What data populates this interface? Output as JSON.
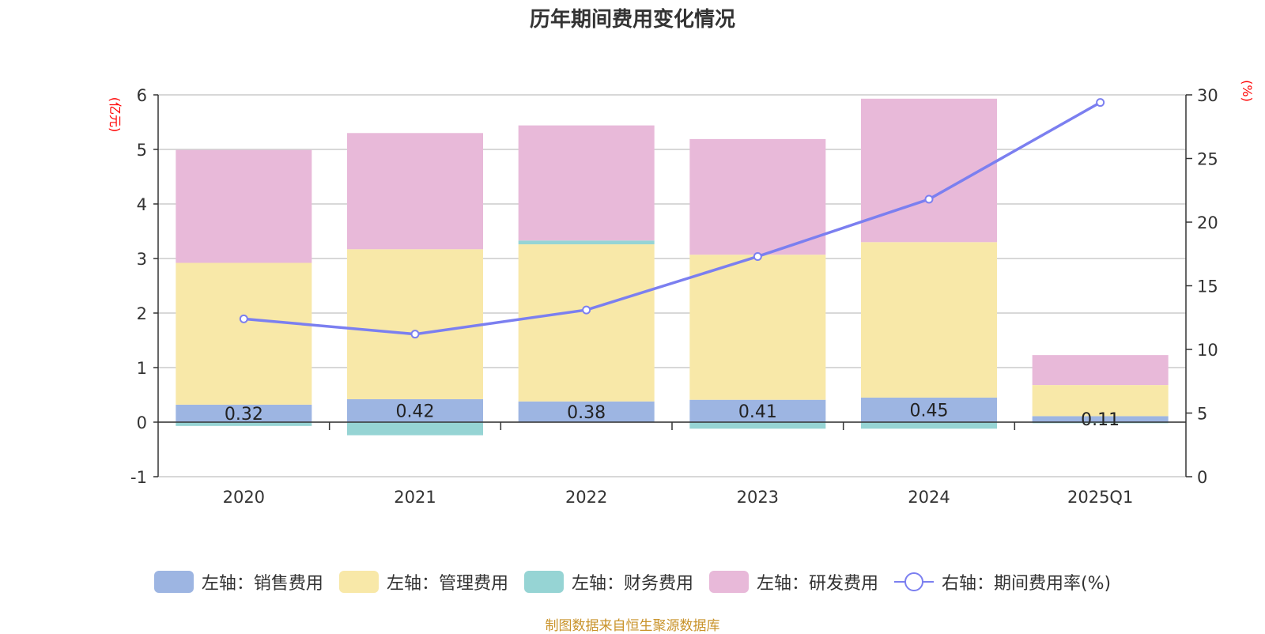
{
  "chart_data": {
    "type": "bar",
    "title": "历年期间费用变化情况",
    "categories": [
      "2020",
      "2021",
      "2022",
      "2023",
      "2024",
      "2025Q1"
    ],
    "series": [
      {
        "name": "左轴：销售费用",
        "axis": "left",
        "color": "#9db5e2",
        "values": [
          0.32,
          0.42,
          0.38,
          0.41,
          0.45,
          0.11
        ]
      },
      {
        "name": "左轴：管理费用",
        "axis": "left",
        "color": "#f8e8a8",
        "values": [
          2.6,
          2.75,
          2.88,
          2.66,
          2.85,
          0.57
        ]
      },
      {
        "name": "左轴：财务费用",
        "axis": "left",
        "color": "#96d4d4",
        "values": [
          -0.07,
          -0.24,
          0.07,
          -0.12,
          -0.12,
          -0.02
        ]
      },
      {
        "name": "左轴：研发费用",
        "axis": "left",
        "color": "#e8b9d9",
        "values": [
          2.07,
          2.13,
          2.11,
          2.12,
          2.63,
          0.55
        ]
      },
      {
        "name": "右轴：期间费用率(%)",
        "axis": "right",
        "type": "line",
        "color": "#7b7ff0",
        "values": [
          12.4,
          11.2,
          13.1,
          17.3,
          21.8,
          29.4
        ]
      }
    ],
    "bar_labels": [
      "0.32",
      "0.42",
      "0.38",
      "0.41",
      "0.45",
      "0.11"
    ],
    "left_axis": {
      "unit": "(亿元)",
      "ylim": [
        -1,
        6
      ],
      "ticks": [
        -1,
        0,
        1,
        2,
        3,
        4,
        5,
        6
      ]
    },
    "right_axis": {
      "unit": "(%)",
      "ylim": [
        0,
        30
      ],
      "ticks": [
        0,
        5,
        10,
        15,
        20,
        25,
        30
      ]
    },
    "legend_position": "bottom",
    "source": "制图数据来自恒生聚源数据库"
  }
}
